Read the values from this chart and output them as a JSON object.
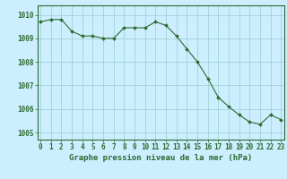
{
  "x": [
    0,
    1,
    2,
    3,
    4,
    5,
    6,
    7,
    8,
    9,
    10,
    11,
    12,
    13,
    14,
    15,
    16,
    17,
    18,
    19,
    20,
    21,
    22,
    23
  ],
  "y": [
    1009.7,
    1009.8,
    1009.8,
    1009.3,
    1009.1,
    1009.1,
    1009.0,
    1009.0,
    1009.45,
    1009.45,
    1009.45,
    1009.7,
    1009.55,
    1009.1,
    1008.55,
    1008.0,
    1007.3,
    1006.5,
    1006.1,
    1005.75,
    1005.45,
    1005.35,
    1005.75,
    1005.55
  ],
  "line_color": "#2d6a2d",
  "marker": "D",
  "marker_size": 2.0,
  "bg_color": "#cceeff",
  "grid_color": "#99cccc",
  "axis_color": "#2d6a2d",
  "label_color": "#2d6a2d",
  "xlabel": "Graphe pression niveau de la mer (hPa)",
  "ylim": [
    1004.7,
    1010.4
  ],
  "yticks": [
    1005,
    1006,
    1007,
    1008,
    1009,
    1010
  ],
  "xticks": [
    0,
    1,
    2,
    3,
    4,
    5,
    6,
    7,
    8,
    9,
    10,
    11,
    12,
    13,
    14,
    15,
    16,
    17,
    18,
    19,
    20,
    21,
    22,
    23
  ],
  "tick_fontsize": 5.5,
  "xlabel_fontsize": 6.5
}
